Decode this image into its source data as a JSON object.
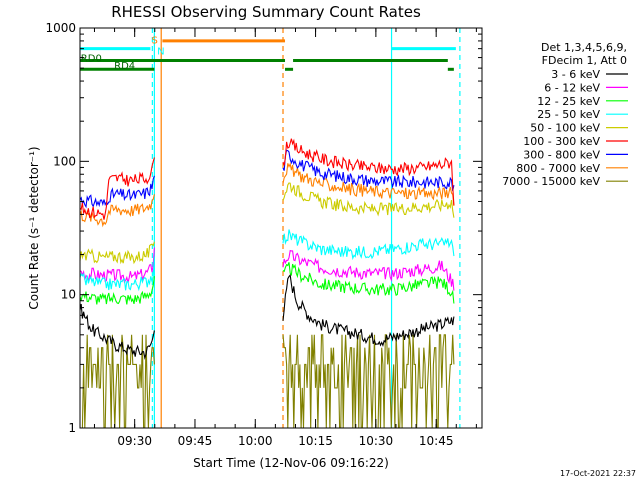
{
  "chart_data": {
    "type": "line",
    "title": "RHESSI Observing Summary Count Rates",
    "xlabel": "Start Time (12-Nov-06 09:16:22)",
    "ylabel": "Count Rate (s⁻¹ detector⁻¹)",
    "x_unit": "minutes after 09:16:22",
    "xlim": [
      0,
      100
    ],
    "ylim": [
      1,
      1000
    ],
    "yscale": "log",
    "x_ticks": [
      {
        "x": 13.6,
        "label": "09:30"
      },
      {
        "x": 28.6,
        "label": "09:45"
      },
      {
        "x": 43.6,
        "label": "10:00"
      },
      {
        "x": 58.6,
        "label": "10:15"
      },
      {
        "x": 73.6,
        "label": "10:30"
      },
      {
        "x": 88.6,
        "label": "10:45"
      }
    ],
    "y_ticks": [
      {
        "y": 1,
        "label": "1"
      },
      {
        "y": 10,
        "label": "10"
      },
      {
        "y": 100,
        "label": "100"
      },
      {
        "y": 1000,
        "label": "1000"
      }
    ],
    "legend_header": [
      "Det 1,3,4,5,6,9,",
      "FDecim 1, Att 0"
    ],
    "legend_position": "right",
    "series": [
      {
        "name": "3 - 6 keV",
        "color": "#000000",
        "style": "noisy",
        "segments": [
          {
            "x": [
              0,
              3,
              6,
              9,
              13,
              16.5,
              18,
              18.5
            ],
            "y": [
              8,
              5.5,
              4.8,
              4.2,
              3.8,
              3.7,
              4.5,
              6
            ]
          },
          {
            "x": [
              50.5,
              52,
              54,
              57,
              60,
              64,
              70,
              75,
              80,
              85,
              90,
              93
            ],
            "y": [
              7,
              14,
              9,
              7,
              6,
              5.5,
              5,
              4.6,
              5,
              5.5,
              6,
              6.5
            ]
          }
        ]
      },
      {
        "name": "6 - 12 keV",
        "color": "#ff00ff",
        "style": "noisy",
        "segments": [
          {
            "x": [
              0,
              2,
              3.5,
              4,
              9,
              13,
              16.5,
              18,
              18.5
            ],
            "y": [
              15,
              14,
              14.5,
              14,
              14,
              13.5,
              14.5,
              16,
              22
            ]
          },
          {
            "x": [
              50.5,
              52,
              55,
              60,
              66,
              72,
              78,
              85,
              90,
              93
            ],
            "y": [
              17,
              20,
              18,
              16,
              15,
              14.5,
              14.5,
              15.5,
              16.5,
              12
            ]
          }
        ]
      },
      {
        "name": "12 - 25 keV",
        "color": "#00ff00",
        "style": "noisy",
        "segments": [
          {
            "x": [
              0,
              3,
              6,
              9,
              13,
              16.5,
              18,
              18.5
            ],
            "y": [
              10,
              9.5,
              9.2,
              9.5,
              9.2,
              9.8,
              11,
              14
            ]
          },
          {
            "x": [
              50.5,
              52,
              55,
              60,
              66,
              72,
              78,
              85,
              90,
              92,
              93
            ],
            "y": [
              14,
              16,
              14,
              12,
              11.5,
              11,
              11,
              12,
              12.5,
              11,
              9
            ]
          }
        ]
      },
      {
        "name": "25 - 50 keV",
        "color": "#00ffff",
        "style": "noisy",
        "segments": [
          {
            "x": [
              0,
              3,
              6,
              9,
              13,
              16.5,
              18,
              18.5
            ],
            "y": [
              13,
              12.5,
              12,
              12,
              12,
              12.5,
              14,
              18
            ]
          },
          {
            "x": [
              50.5,
              52,
              55,
              60,
              66,
              72,
              78,
              85,
              90,
              92.5,
              93
            ],
            "y": [
              26,
              28,
              25,
              22,
              21,
              21,
              22,
              24,
              24,
              25,
              18
            ]
          }
        ]
      },
      {
        "name": "50 - 100 keV",
        "color": "#cccc00",
        "style": "noisy",
        "segments": [
          {
            "x": [
              0,
              3,
              6,
              9,
              13,
              16.5,
              18,
              18.5
            ],
            "y": [
              20,
              19.5,
              19,
              19.5,
              19,
              20,
              22,
              26
            ]
          },
          {
            "x": [
              50.5,
              52,
              55,
              60,
              66,
              72,
              78,
              85,
              90,
              92.5,
              93
            ],
            "y": [
              55,
              68,
              58,
              50,
              46,
              44,
              44,
              46,
              47,
              50,
              38
            ]
          }
        ]
      },
      {
        "name": "100 - 300 keV",
        "color": "#ff0000",
        "style": "noisy",
        "segments": [
          {
            "x": [
              0,
              3,
              6.5,
              7,
              9,
              13,
              16.5,
              18,
              18.5
            ],
            "y": [
              45,
              42,
              40,
              72,
              75,
              72,
              75,
              85,
              120
            ]
          },
          {
            "x": [
              50.5,
              51.5,
              55,
              60,
              66,
              72,
              78,
              85,
              90,
              92.5,
              93
            ],
            "y": [
              90,
              140,
              120,
              105,
              95,
              90,
              88,
              90,
              95,
              100,
              45
            ]
          }
        ]
      },
      {
        "name": "300 - 800 keV",
        "color": "#0000ff",
        "style": "noisy",
        "segments": [
          {
            "x": [
              0,
              3,
              6.5,
              7,
              9,
              13,
              16.5,
              18,
              18.5
            ],
            "y": [
              52,
              50,
              48,
              55,
              57,
              55,
              58,
              65,
              80
            ]
          },
          {
            "x": [
              50.5,
              51.5,
              55,
              60,
              66,
              72,
              78,
              85,
              90,
              92.5,
              93
            ],
            "y": [
              85,
              115,
              95,
              82,
              76,
              72,
              70,
              70,
              70,
              70,
              60
            ]
          }
        ]
      },
      {
        "name": "800 - 7000 keV",
        "color": "#ff8000",
        "style": "noisy",
        "segments": [
          {
            "x": [
              0,
              3,
              6.5,
              7,
              9,
              13,
              16.5,
              18,
              18.5
            ],
            "y": [
              40,
              38,
              36,
              42,
              44,
              43,
              45,
              50,
              62
            ]
          },
          {
            "x": [
              50.5,
              51.5,
              55,
              60,
              66,
              72,
              78,
              85,
              90,
              92.5,
              93
            ],
            "y": [
              75,
              90,
              78,
              68,
              63,
              60,
              58,
              57,
              58,
              58,
              52
            ]
          }
        ]
      },
      {
        "name": "7000 - 15000 keV",
        "color": "#808000",
        "style": "quantized",
        "segments": [
          {
            "x": [
              0,
              18.5
            ],
            "y": [
              3.5,
              3.5
            ]
          },
          {
            "x": [
              50.5,
              93
            ],
            "y": [
              2.5,
              2.5
            ]
          }
        ]
      }
    ],
    "annotations": [
      {
        "text": "RD0",
        "x": 0.2,
        "y": 600,
        "color": "#006400"
      },
      {
        "text": "RD4",
        "x": 8.5,
        "y": 530,
        "color": "#006400"
      },
      {
        "text": "S",
        "x": 17.8,
        "y": 820,
        "color": "#ff8000"
      },
      {
        "text": "N",
        "x": 19.2,
        "y": 680,
        "color": "#00ffff"
      }
    ],
    "flags": [
      {
        "color": "#00ffff",
        "y": 700,
        "x_ranges": [
          [
            0,
            17.5
          ],
          [
            77.5,
            93.5
          ]
        ]
      },
      {
        "color": "#ff8000",
        "y": 800,
        "x_ranges": [
          [
            20.5,
            51
          ]
        ]
      },
      {
        "color": "#008000",
        "y": 570,
        "x_ranges": [
          [
            0,
            51
          ],
          [
            53,
            91.5
          ]
        ]
      },
      {
        "color": "#008000",
        "y": 490,
        "x_ranges": [
          [
            0,
            18.5
          ],
          [
            51,
            53
          ],
          [
            91.5,
            93
          ]
        ]
      }
    ],
    "vlines": [
      {
        "x": 18.5,
        "color": "#00ffff",
        "dash": false
      },
      {
        "x": 20.2,
        "color": "#ff8000",
        "dash": false
      },
      {
        "x": 18.0,
        "color": "#00ffff",
        "dash": true
      },
      {
        "x": 50.5,
        "color": "#ff8000",
        "dash": true
      },
      {
        "x": 77.5,
        "color": "#00ffff",
        "dash": false
      },
      {
        "x": 94.5,
        "color": "#00ffff",
        "dash": true
      }
    ]
  },
  "footer": {
    "timestamp": "17-Oct-2021 22:37"
  }
}
